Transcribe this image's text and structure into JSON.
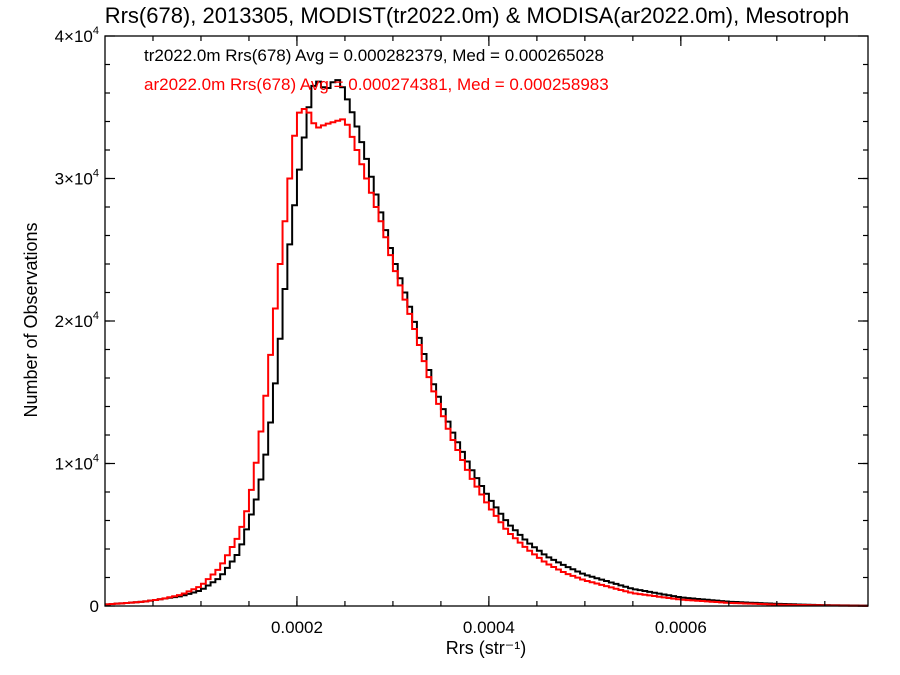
{
  "chart_data": {
    "type": "line",
    "title": "Rrs(678), 2013305, MODIST(tr2022.0m) & MODISA(ar2022.0m), Mesotroph",
    "xlabel": "Rrs (str⁻¹)",
    "ylabel": "Number of Observations",
    "xlim": [
      0.0,
      0.000795
    ],
    "ylim": [
      0,
      40000
    ],
    "x_ticks": [
      {
        "value": 0.0002,
        "label": "0.0002"
      },
      {
        "value": 0.0004,
        "label": "0.0004"
      },
      {
        "value": 0.0006,
        "label": "0.0006"
      }
    ],
    "y_ticks": [
      {
        "value": 0,
        "mantissa": "0",
        "base": "",
        "exp": ""
      },
      {
        "value": 10000,
        "mantissa": "1×",
        "base": "10",
        "exp": "4"
      },
      {
        "value": 20000,
        "mantissa": "2×",
        "base": "10",
        "exp": "4"
      },
      {
        "value": 30000,
        "mantissa": "3×",
        "base": "10",
        "exp": "4"
      },
      {
        "value": 40000,
        "mantissa": "4×",
        "base": "10",
        "exp": "4"
      }
    ],
    "x_minor_step": 5e-05,
    "y_minor_step": 2000,
    "grid": false,
    "series": [
      {
        "name": "tr2022.0m",
        "color": "#000000",
        "stats_label": "tr2022.0m Rrs(678) Avg = 0.000282379, Med = 0.000265028",
        "x": [
          0.0,
          4e-05,
          6e-05,
          8e-05,
          0.0001,
          0.00012,
          0.00014,
          0.00016,
          0.00017,
          0.00018,
          0.00019,
          0.0002,
          0.00021,
          0.000215,
          0.00022,
          0.00023,
          0.000235,
          0.00024,
          0.000245,
          0.00025,
          0.00026,
          0.00027,
          0.00028,
          0.00029,
          0.0003,
          0.00032,
          0.00034,
          0.00036,
          0.00038,
          0.0004,
          0.00042,
          0.00044,
          0.00046,
          0.00048,
          0.0005,
          0.00055,
          0.0006,
          0.00065,
          0.0007,
          0.00075,
          0.000795
        ],
        "y": [
          100,
          300,
          500,
          700,
          1100,
          2000,
          3800,
          8000,
          11500,
          17000,
          24000,
          29500,
          34000,
          36000,
          37000,
          36200,
          36500,
          37000,
          36800,
          36000,
          34200,
          32000,
          29500,
          27000,
          24500,
          20500,
          16000,
          12500,
          9800,
          7600,
          5800,
          4500,
          3500,
          2800,
          2200,
          1200,
          600,
          300,
          150,
          60,
          20
        ]
      },
      {
        "name": "ar2022.0m",
        "color": "#ff0000",
        "stats_label": "ar2022.0m Rrs(678) Avg = 0.000274381, Med = 0.000258983",
        "x": [
          0.0,
          4e-05,
          6e-05,
          8e-05,
          0.0001,
          0.00012,
          0.00014,
          0.00015,
          0.00016,
          0.00017,
          0.00018,
          0.00019,
          0.000195,
          0.0002,
          0.00021,
          0.00022,
          0.00023,
          0.00024,
          0.00025,
          0.00026,
          0.00027,
          0.00028,
          0.00029,
          0.0003,
          0.00032,
          0.00034,
          0.00036,
          0.00038,
          0.0004,
          0.00042,
          0.00044,
          0.00046,
          0.00048,
          0.0005,
          0.00055,
          0.0006,
          0.00065,
          0.0007,
          0.00075,
          0.000795
        ],
        "y": [
          100,
          300,
          500,
          800,
          1400,
          2700,
          5000,
          7200,
          11000,
          16000,
          22500,
          28500,
          31500,
          34500,
          35000,
          33500,
          33800,
          34000,
          34200,
          32500,
          30500,
          28500,
          26500,
          24000,
          20000,
          15500,
          12000,
          9200,
          7000,
          5200,
          4000,
          3000,
          2300,
          1800,
          900,
          450,
          220,
          100,
          40,
          10
        ]
      }
    ]
  }
}
